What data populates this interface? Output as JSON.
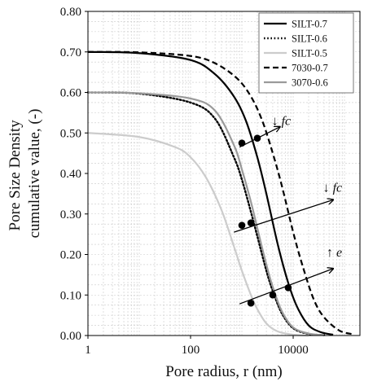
{
  "chart_data": {
    "type": "line",
    "xlabel": "Pore radius, r (nm)",
    "ylabel_lines": [
      "Pore Size Density",
      "cumulative value, (-)"
    ],
    "x_scale": "log",
    "xlim": [
      1,
      200000
    ],
    "ylim": [
      0,
      0.8
    ],
    "grid": true,
    "x_ticks": [
      1,
      100,
      10000
    ],
    "x_tick_labels": [
      "1",
      "100",
      "10000"
    ],
    "y_ticks": [
      0,
      0.1,
      0.2,
      0.3,
      0.4,
      0.5,
      0.6,
      0.7,
      0.8
    ],
    "y_tick_labels": [
      "0.00",
      "0.10",
      "0.20",
      "0.30",
      "0.40",
      "0.50",
      "0.60",
      "0.70",
      "0.80"
    ],
    "legend_position": "top-right",
    "series": [
      {
        "name": "SILT-0.7",
        "style": "solid",
        "color": "#000000",
        "x": [
          1,
          10,
          100,
          300,
          700,
          1200,
          2000,
          3000,
          5000,
          8000,
          12000,
          20000,
          35000,
          60000
        ],
        "y": [
          0.7,
          0.697,
          0.68,
          0.645,
          0.59,
          0.53,
          0.44,
          0.35,
          0.225,
          0.13,
          0.07,
          0.025,
          0.008,
          0.002
        ]
      },
      {
        "name": "SILT-0.6",
        "style": "dotted",
        "color": "#000000",
        "x": [
          1,
          10,
          100,
          300,
          700,
          1000,
          1500,
          2000,
          3000,
          4000,
          6000,
          10000,
          20000,
          40000
        ],
        "y": [
          0.6,
          0.597,
          0.575,
          0.535,
          0.44,
          0.385,
          0.305,
          0.245,
          0.16,
          0.11,
          0.055,
          0.018,
          0.004,
          0.001
        ]
      },
      {
        "name": "SILT-0.5",
        "style": "solid",
        "color": "#cccccc",
        "x": [
          1,
          10,
          50,
          100,
          200,
          400,
          700,
          1000,
          1500,
          2000,
          3000,
          5000,
          10000,
          20000
        ],
        "y": [
          0.5,
          0.49,
          0.465,
          0.44,
          0.39,
          0.31,
          0.22,
          0.16,
          0.1,
          0.065,
          0.03,
          0.01,
          0.002,
          0.0
        ]
      },
      {
        "name": "7030-0.7",
        "style": "dashed",
        "color": "#000000",
        "x": [
          1,
          10,
          100,
          300,
          800,
          1500,
          2500,
          4000,
          6000,
          10000,
          15000,
          25000,
          40000,
          80000,
          150000
        ],
        "y": [
          0.7,
          0.699,
          0.69,
          0.672,
          0.635,
          0.59,
          0.53,
          0.45,
          0.37,
          0.255,
          0.175,
          0.09,
          0.045,
          0.012,
          0.003
        ]
      },
      {
        "name": "3070-0.6",
        "style": "solid",
        "color": "#9a9a9a",
        "x": [
          1,
          10,
          100,
          300,
          700,
          1000,
          1500,
          2000,
          3000,
          4000,
          6000,
          10000,
          20000,
          40000
        ],
        "y": [
          0.6,
          0.598,
          0.585,
          0.555,
          0.47,
          0.41,
          0.33,
          0.265,
          0.175,
          0.12,
          0.06,
          0.02,
          0.005,
          0.001
        ]
      }
    ],
    "annotations": [
      {
        "text_arrow": "↓",
        "text_var": "fc",
        "x": 9000,
        "y": 0.52,
        "arrow_from": [
          900,
          0.465
        ],
        "arrow_to": [
          5500,
          0.515
        ],
        "points": [
          [
            1000,
            0.475
          ],
          [
            2000,
            0.487
          ]
        ]
      },
      {
        "text_arrow": "↓",
        "text_var": "fc",
        "x": 90000,
        "y": 0.355,
        "arrow_from": [
          700,
          0.255
        ],
        "arrow_to": [
          60000,
          0.335
        ],
        "points": [
          [
            1000,
            0.272
          ],
          [
            1500,
            0.278
          ]
        ]
      },
      {
        "text_arrow": "↑",
        "text_var": "e",
        "x": 90000,
        "y": 0.195,
        "arrow_from": [
          900,
          0.078
        ],
        "arrow_to": [
          60000,
          0.165
        ],
        "points": [
          [
            1500,
            0.08
          ],
          [
            4000,
            0.1
          ],
          [
            8000,
            0.118
          ]
        ]
      }
    ]
  }
}
